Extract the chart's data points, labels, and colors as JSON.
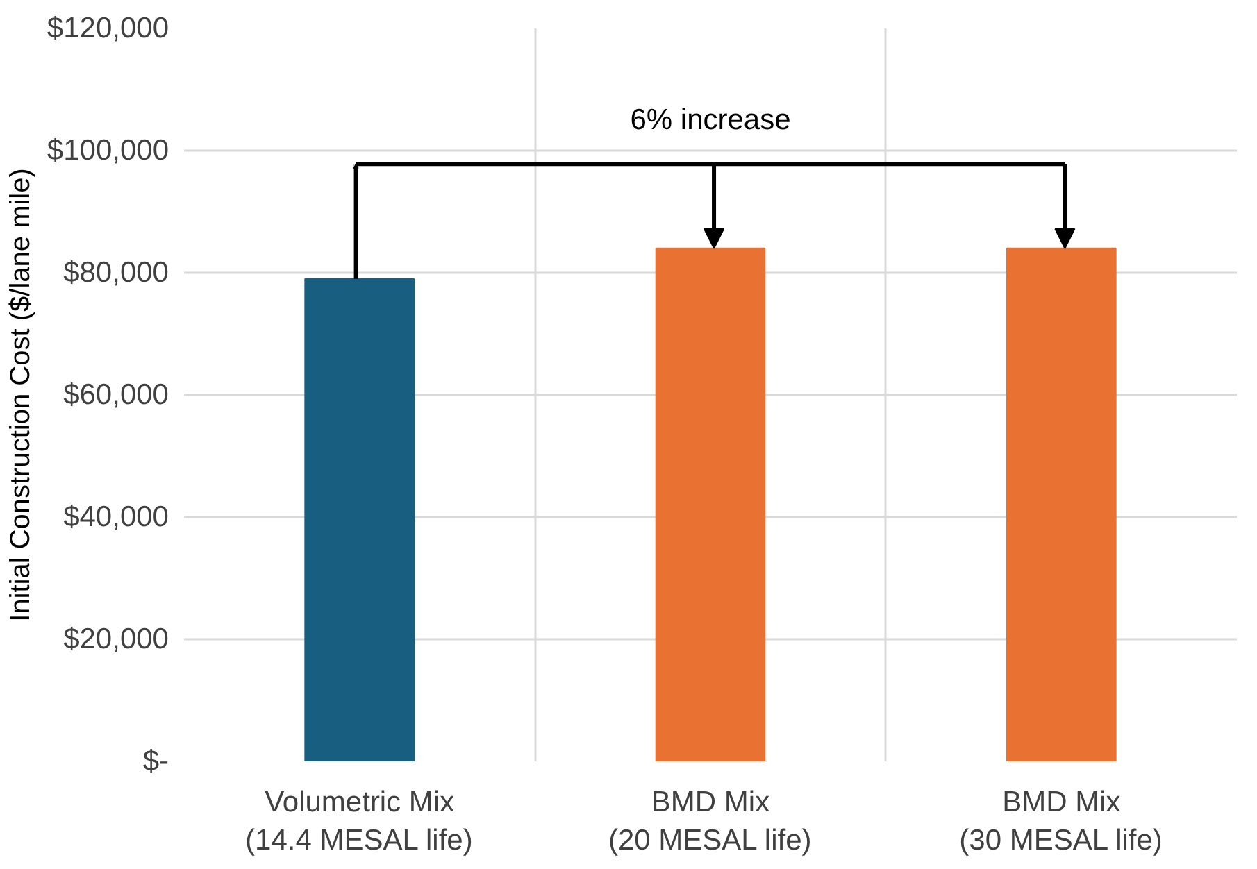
{
  "chart_data": {
    "type": "bar",
    "ylabel": "Initial Construction Cost ($/lane mile)",
    "categories": [
      "Volumetric Mix\n(14.4 MESAL life)",
      "BMD Mix\n(20 MESAL life)",
      "BMD Mix\n(30 MESAL life)"
    ],
    "values": [
      79000,
      84000,
      84000
    ],
    "colors": [
      "#175e80",
      "#e97132",
      "#e97132"
    ],
    "ylim": [
      0,
      120000
    ],
    "yticks": [
      {
        "value": 0,
        "label": "$-"
      },
      {
        "value": 20000,
        "label": "$20,000"
      },
      {
        "value": 40000,
        "label": "$40,000"
      },
      {
        "value": 60000,
        "label": "$60,000"
      },
      {
        "value": 80000,
        "label": "$80,000"
      },
      {
        "value": 100000,
        "label": "$100,000"
      },
      {
        "value": 120000,
        "label": "$120,000"
      }
    ],
    "annotations": [
      {
        "text": "6% increase",
        "y": 84000
      }
    ],
    "grid": true
  }
}
